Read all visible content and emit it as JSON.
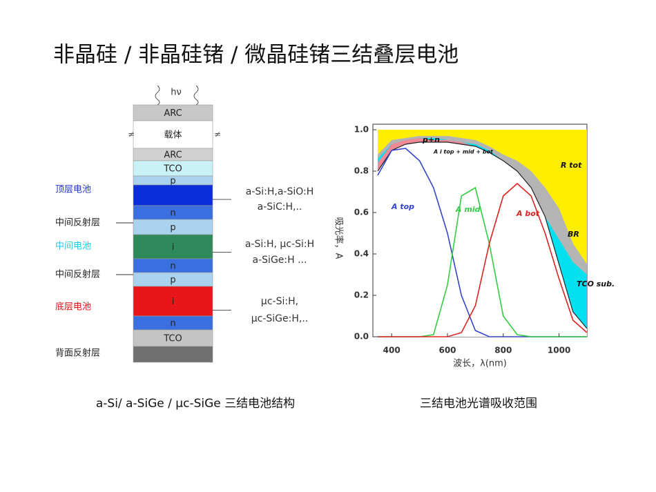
{
  "title": "非晶硅 / 非晶硅锗 / 微晶硅锗三结叠层电池",
  "structure": {
    "light": "hν",
    "layers": [
      {
        "label": "ARC",
        "color": "#c8c8c8"
      },
      {
        "label": "载体",
        "color": "#ffffff"
      },
      {
        "label": "ARC",
        "color": "#d0d0d0"
      },
      {
        "label": "TCO",
        "color": "#c8f2f6"
      },
      {
        "label": "p",
        "color": "#a9d2ee"
      },
      {
        "color": "#0a2fd8"
      },
      {
        "label": "n",
        "color": "#3a6fe0"
      },
      {
        "label": "p",
        "color": "#a9d2ee"
      },
      {
        "label": "i",
        "color": "#2e8a5a"
      },
      {
        "label": "n",
        "color": "#3a6fe0"
      },
      {
        "label": "p",
        "color": "#a9d2ee"
      },
      {
        "label": "i",
        "color": "#e8151b"
      },
      {
        "label": "n",
        "color": "#3a6fe0"
      },
      {
        "label": "TCO",
        "color": "#c4c4c4"
      },
      {
        "color": "#707070"
      }
    ],
    "side_labels": [
      {
        "text": "顶层电池",
        "color": "#2233cc"
      },
      {
        "text": "中间反射层",
        "color": "#222222"
      },
      {
        "text": "中间电池",
        "color": "#22c8e8"
      },
      {
        "text": "中间反射层",
        "color": "#222222"
      },
      {
        "text": "底层电池",
        "color": "#dd1111"
      },
      {
        "text": "背面反射层",
        "color": "#222222"
      }
    ],
    "materials": [
      [
        "a-Si:H,a-SiO:H",
        "a-SiC:H,.."
      ],
      [
        "a-Si:H, μc-Si:H",
        "a-SiGe:H ..."
      ],
      [
        "μc-Si:H,",
        "μc-SiGe:H,.."
      ]
    ]
  },
  "captions": [
    "a-Si/ a-SiGe / μc-SiGe 三结电池结构",
    "三结电池光谱吸收范围"
  ],
  "chart_data": {
    "type": "line",
    "xlabel": "波长，λ(nm)",
    "ylabel": "吸光率，A",
    "plot_bg": "#ffee00",
    "annotation": "R tot",
    "x": [
      350,
      400,
      450,
      500,
      550,
      600,
      650,
      700,
      750,
      800,
      850,
      900,
      950,
      1000,
      1050,
      1100
    ],
    "xlim": [
      350,
      1100
    ],
    "xticks": [
      400,
      600,
      800,
      1000
    ],
    "ylim": [
      0,
      1.0
    ],
    "yticks": [
      {
        "value": 0,
        "label": "0.0"
      },
      {
        "value": 0.2,
        "label": "0.2"
      },
      {
        "value": 0.4,
        "label": "0.4"
      },
      {
        "value": 0.6,
        "label": "0.6"
      },
      {
        "value": 0.8,
        "label": "0.8"
      },
      {
        "value": 1.0,
        "label": "1.0"
      }
    ],
    "fills": [
      {
        "name": "BR",
        "color": "#b4b4b4",
        "values": [
          0.88,
          0.95,
          0.96,
          0.97,
          0.97,
          0.97,
          0.96,
          0.95,
          0.92,
          0.88,
          0.85,
          0.8,
          0.72,
          0.62,
          0.45,
          0.35
        ]
      },
      {
        "name": "TCO sub.",
        "color": "#00e0ee",
        "values": [
          0.86,
          0.93,
          0.95,
          0.96,
          0.96,
          0.95,
          0.94,
          0.93,
          0.9,
          0.85,
          0.78,
          0.7,
          0.58,
          0.47,
          0.36,
          0.3
        ]
      },
      {
        "name": "p+n",
        "color": "#ef8a96",
        "values": [
          0.84,
          0.93,
          0.95,
          0.96,
          0.95,
          0.95,
          0.94,
          0.92,
          0.89,
          0.85,
          0.8,
          0.72,
          0.58,
          0.35,
          0.12,
          0.04
        ]
      }
    ],
    "series": [
      {
        "name": "A i top + mid + bot",
        "color": "#222222",
        "values": [
          0.8,
          0.9,
          0.93,
          0.94,
          0.94,
          0.94,
          0.93,
          0.92,
          0.89,
          0.85,
          0.8,
          0.72,
          0.58,
          0.35,
          0.12,
          0.04
        ]
      },
      {
        "name": "A top",
        "color": "#3344cc",
        "values": [
          0.78,
          0.9,
          0.91,
          0.85,
          0.72,
          0.5,
          0.2,
          0.03,
          0.0,
          0.0,
          0.0,
          0.0,
          0.0,
          0.0,
          0.0,
          0.0
        ]
      },
      {
        "name": "A mid",
        "color": "#33cc44",
        "values": [
          0.0,
          0.0,
          0.0,
          0.0,
          0.01,
          0.25,
          0.68,
          0.72,
          0.45,
          0.1,
          0.01,
          0.0,
          0.0,
          0.0,
          0.0,
          0.0
        ]
      },
      {
        "name": "A bot",
        "color": "#dd2222",
        "values": [
          0.0,
          0.0,
          0.0,
          0.0,
          0.0,
          0.0,
          0.02,
          0.15,
          0.45,
          0.68,
          0.74,
          0.68,
          0.5,
          0.28,
          0.08,
          0.02
        ]
      }
    ]
  }
}
